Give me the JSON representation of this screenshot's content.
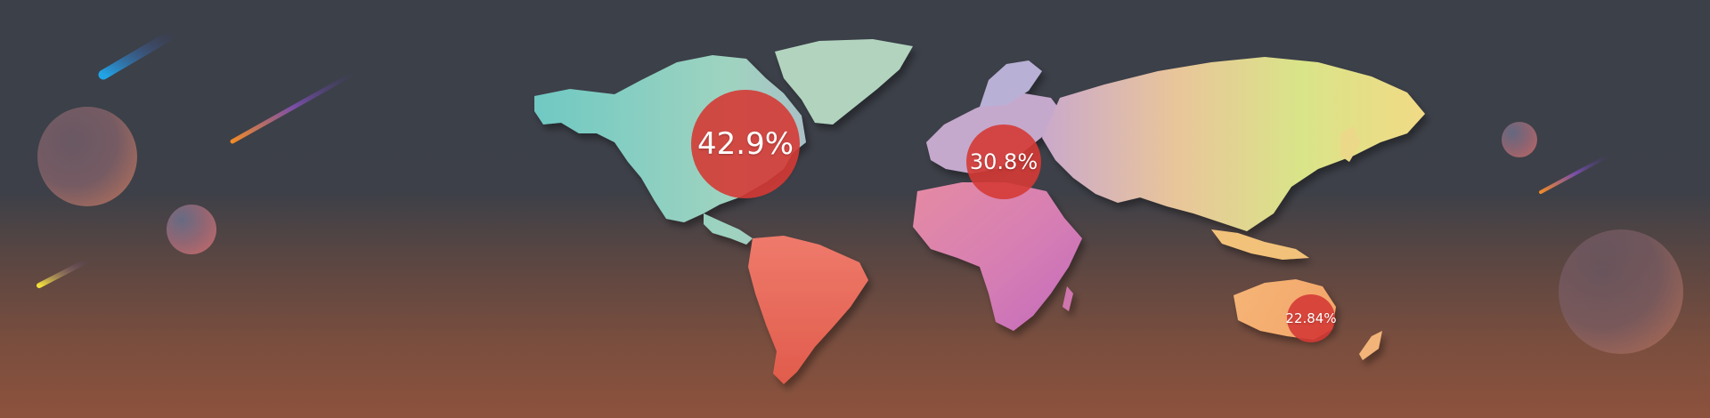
{
  "banner": {
    "colors": {
      "background_top": "#3d4048",
      "background_bottom": "#8d523d",
      "marker_fill": "#d53a35"
    }
  },
  "markers": [
    {
      "region": "North America",
      "label": "42.9%",
      "value": 42.9
    },
    {
      "region": "Europe",
      "label": "30.8%",
      "value": 30.8
    },
    {
      "region": "Australia",
      "label": "22.84%",
      "value": 22.84
    }
  ]
}
